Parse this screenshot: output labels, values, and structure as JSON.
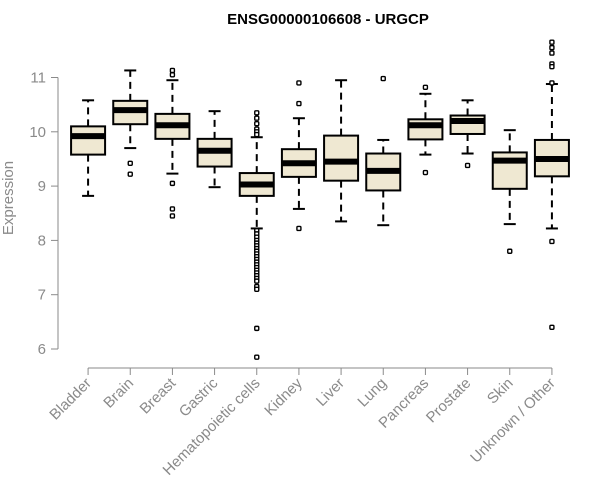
{
  "chart_data": {
    "type": "box",
    "title": "ENSG00000106608 - URGCP",
    "xlabel": "",
    "ylabel": "Expression",
    "ylim": [
      5.8,
      11.75
    ],
    "yticks": [
      6,
      7,
      8,
      9,
      10,
      11
    ],
    "grid": false,
    "legend": "none",
    "colors": {
      "box_fill": "#efe8d2",
      "box_stroke": "#000000",
      "median": "#000000",
      "axis": "#8a8a8a"
    },
    "categories": [
      "Bladder",
      "Brain",
      "Breast",
      "Gastric",
      "Hematopoietic cells",
      "Kidney",
      "Liver",
      "Lung",
      "Pancreas",
      "Prostate",
      "Skin",
      "Unknown / Other"
    ],
    "boxes": [
      {
        "name": "Bladder",
        "whisker_low": 8.82,
        "q1": 9.58,
        "median": 9.92,
        "q3": 10.1,
        "whisker_high": 10.58,
        "outliers": []
      },
      {
        "name": "Brain",
        "whisker_low": 9.7,
        "q1": 10.14,
        "median": 10.4,
        "q3": 10.57,
        "whisker_high": 11.13,
        "outliers": [
          9.42,
          9.22
        ]
      },
      {
        "name": "Breast",
        "whisker_low": 9.23,
        "q1": 9.87,
        "median": 10.12,
        "q3": 10.33,
        "whisker_high": 10.95,
        "outliers": [
          11.13,
          11.05,
          9.05,
          8.58,
          8.45
        ]
      },
      {
        "name": "Gastric",
        "whisker_low": 8.98,
        "q1": 9.36,
        "median": 9.65,
        "q3": 9.87,
        "whisker_high": 10.38,
        "outliers": []
      },
      {
        "name": "Hematopoietic cells",
        "whisker_low": 8.22,
        "q1": 8.82,
        "median": 9.03,
        "q3": 9.24,
        "whisker_high": 9.9,
        "outliers": [
          10.35,
          10.25,
          10.15,
          10.05,
          10.0,
          9.95,
          8.18,
          8.12,
          8.06,
          8.0,
          7.95,
          7.9,
          7.85,
          7.8,
          7.75,
          7.7,
          7.65,
          7.6,
          7.55,
          7.5,
          7.45,
          7.4,
          7.35,
          7.3,
          7.25,
          7.15,
          7.1,
          6.38,
          5.85
        ]
      },
      {
        "name": "Kidney",
        "whisker_low": 8.58,
        "q1": 9.17,
        "median": 9.42,
        "q3": 9.68,
        "whisker_high": 10.25,
        "outliers": [
          10.9,
          10.52,
          8.22
        ]
      },
      {
        "name": "Liver",
        "whisker_low": 8.35,
        "q1": 9.1,
        "median": 9.45,
        "q3": 9.93,
        "whisker_high": 10.95,
        "outliers": []
      },
      {
        "name": "Lung",
        "whisker_low": 8.28,
        "q1": 8.92,
        "median": 9.28,
        "q3": 9.6,
        "whisker_high": 9.85,
        "outliers": [
          10.98
        ]
      },
      {
        "name": "Pancreas",
        "whisker_low": 9.58,
        "q1": 9.86,
        "median": 10.12,
        "q3": 10.23,
        "whisker_high": 10.7,
        "outliers": [
          10.82,
          9.25
        ]
      },
      {
        "name": "Prostate",
        "whisker_low": 9.6,
        "q1": 9.96,
        "median": 10.2,
        "q3": 10.3,
        "whisker_high": 10.58,
        "outliers": [
          9.38
        ]
      },
      {
        "name": "Skin",
        "whisker_low": 8.3,
        "q1": 8.95,
        "median": 9.47,
        "q3": 9.62,
        "whisker_high": 10.03,
        "outliers": [
          7.8
        ]
      },
      {
        "name": "Unknown / Other",
        "whisker_low": 8.22,
        "q1": 9.18,
        "median": 9.5,
        "q3": 9.85,
        "whisker_high": 10.88,
        "outliers": [
          11.65,
          11.55,
          11.45,
          11.25,
          11.2,
          10.9,
          7.98,
          6.4
        ]
      }
    ]
  }
}
